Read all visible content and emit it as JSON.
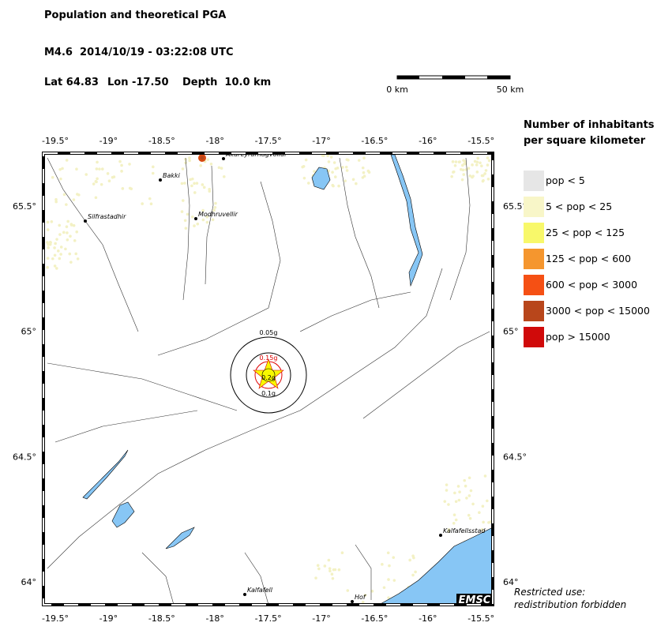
{
  "header": {
    "title": "Population and theoretical PGA",
    "event": "M4.6  2014/10/19 - 03:22:08 UTC",
    "lat": "Lat 64.83",
    "lon": "Lon -17.50",
    "depth": "Depth  10.0 km"
  },
  "scale_bar": {
    "start": "0 km",
    "end": "50 km"
  },
  "map": {
    "lon_labels": [
      "-19.5°",
      "-19°",
      "-18.5°",
      "-18°",
      "-17.5°",
      "-17°",
      "-16.5°",
      "-16°",
      "-15.5°"
    ],
    "lat_labels": [
      "65.5°",
      "65°",
      "64.5°",
      "64°"
    ],
    "places": [
      {
        "label": "Akureyrarflugvollur"
      },
      {
        "label": "Bakki"
      },
      {
        "label": "Silfrastadhir"
      },
      {
        "label": "Modhruvellir"
      },
      {
        "label": "Kalfafellsstad"
      },
      {
        "label": "Kalfafell"
      },
      {
        "label": "Hof"
      }
    ],
    "pga": [
      "0.05g",
      "0.15g",
      "0.2g",
      "0.1g"
    ],
    "logo": "EMSC"
  },
  "legend": {
    "title": [
      "Number of inhabitants",
      "per square kilometer"
    ],
    "items": [
      {
        "label": "pop < 5",
        "color": "#e6e6e6"
      },
      {
        "label": "5 < pop < 25",
        "color": "#f8f6c8"
      },
      {
        "label": "25 < pop < 125",
        "color": "#f8f86a"
      },
      {
        "label": "125 < pop < 600",
        "color": "#f5962e"
      },
      {
        "label": "600 < pop < 3000",
        "color": "#f55014"
      },
      {
        "label": "3000 < pop < 15000",
        "color": "#b8461b"
      },
      {
        "label": "pop > 15000",
        "color": "#d00a0a"
      }
    ]
  },
  "notice": [
    "Restricted use:",
    "redistribution forbidden"
  ]
}
